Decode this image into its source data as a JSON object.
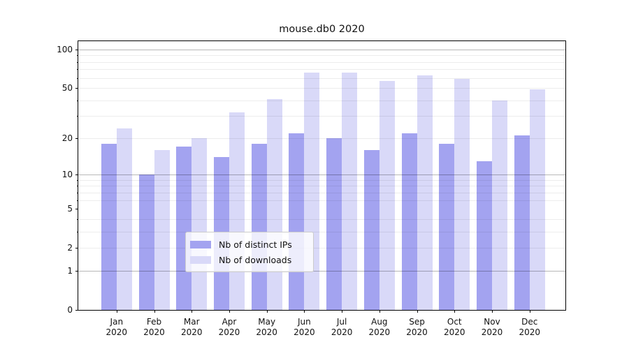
{
  "chart_data": {
    "type": "bar",
    "title": "mouse.db0 2020",
    "categories": [
      "Jan",
      "Feb",
      "Mar",
      "Apr",
      "May",
      "Jun",
      "Jul",
      "Aug",
      "Sep",
      "Oct",
      "Nov",
      "Dec"
    ],
    "category_year": "2020",
    "series": [
      {
        "name": "Nb of distinct IPs",
        "color": "#a3a3f0",
        "values": [
          18,
          10,
          17,
          14,
          18,
          22,
          20,
          16,
          22,
          18,
          13,
          21
        ]
      },
      {
        "name": "Nb of downloads",
        "color": "#d9d9f8",
        "values": [
          24,
          16,
          20,
          32,
          41,
          66,
          66,
          57,
          63,
          59,
          40,
          49
        ]
      }
    ],
    "yscale": "log1p",
    "ylim": [
      0,
      116
    ],
    "yticks": [
      0,
      1,
      2,
      5,
      10,
      20,
      50,
      100
    ],
    "ygrid_major": [
      1,
      10,
      100
    ],
    "ygrid_minor": [
      2,
      3,
      4,
      6,
      7,
      8,
      9,
      20,
      30,
      40,
      50,
      60,
      70,
      80,
      90
    ],
    "grid": true,
    "legend_position": "lower center"
  },
  "colors": {
    "bar_distinct_ips": "#a3a3f0",
    "bar_downloads": "#d9d9f8",
    "grid_major": "rgba(0,0,0,0.28)",
    "grid_minor": "rgba(0,0,0,0.07)",
    "spine": "#000000",
    "text": "#111111",
    "legend_bg": "rgba(255,255,255,0.8)",
    "legend_border": "#cccccc"
  }
}
